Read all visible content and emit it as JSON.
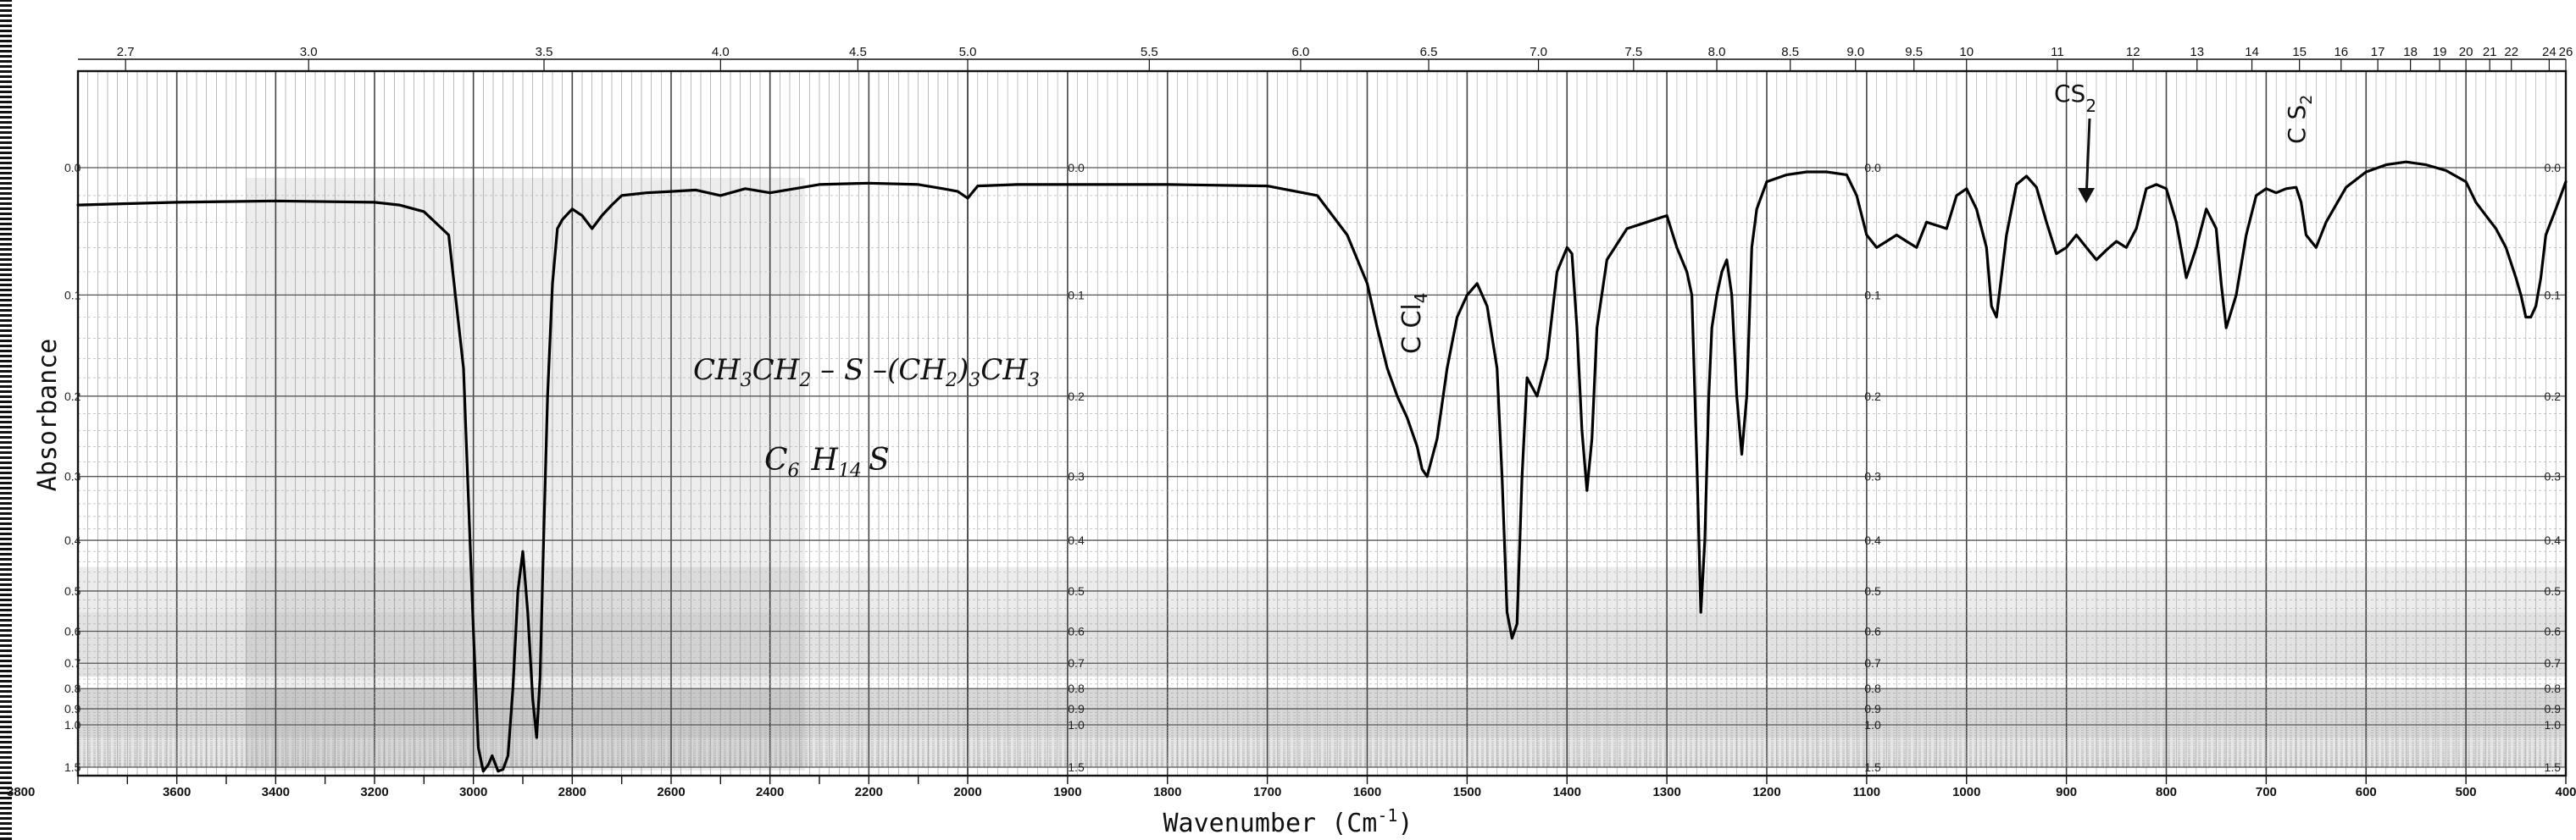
{
  "chart_data": {
    "type": "line",
    "title": "",
    "xlabel": "Wavenumber (Cm-1)",
    "xlabel_parts": {
      "main": "Wavenumber (Cm",
      "sup": "-1",
      "close": ")"
    },
    "ylabel": "Absorbance",
    "x_axis_reversed": true,
    "xlim": [
      3800,
      400
    ],
    "ylim": [
      0.0,
      1.5
    ],
    "y_scale": "transmittance-linear (absorbance grid)",
    "grid": true,
    "x_ticks_bottom": [
      "3800",
      "3600",
      "3400",
      "3200",
      "3000",
      "2800",
      "2600",
      "2400",
      "2200",
      "2000",
      "1900",
      "1800",
      "1700",
      "1600",
      "1500",
      "1400",
      "1300",
      "1200",
      "1100",
      "1000",
      "900",
      "800",
      "700",
      "600",
      "500",
      "400"
    ],
    "x_ticks_top": [
      {
        "label": "2.7",
        "um": 2.7
      },
      {
        "label": "3.0",
        "um": 3.0
      },
      {
        "label": "3.5",
        "um": 3.5
      },
      {
        "label": "4.0",
        "um": 4.0
      },
      {
        "label": "4.5",
        "um": 4.5
      },
      {
        "label": "5.0",
        "um": 5.0
      },
      {
        "label": "5.5",
        "um": 5.5
      },
      {
        "label": "6.0",
        "um": 6.0
      },
      {
        "label": "6.5",
        "um": 6.5
      },
      {
        "label": "7.0",
        "um": 7.0
      },
      {
        "label": "7.5",
        "um": 7.5
      },
      {
        "label": "8.0",
        "um": 8.0
      },
      {
        "label": "8.5",
        "um": 8.5
      },
      {
        "label": "9.0",
        "um": 9.0
      },
      {
        "label": "9.5",
        "um": 9.5
      },
      {
        "label": "10",
        "um": 10
      },
      {
        "label": "11",
        "um": 11
      },
      {
        "label": "12",
        "um": 12
      },
      {
        "label": "13",
        "um": 13
      },
      {
        "label": "14",
        "um": 14
      },
      {
        "label": "15",
        "um": 15
      },
      {
        "label": "16",
        "um": 16
      },
      {
        "label": "17",
        "um": 17
      },
      {
        "label": "18",
        "um": 18
      },
      {
        "label": "19",
        "um": 19
      },
      {
        "label": "20",
        "um": 20
      },
      {
        "label": "21",
        "um": 21
      },
      {
        "label": "22",
        "um": 22
      },
      {
        "label": "24",
        "um": 24
      },
      {
        "label": "26",
        "um": 26
      }
    ],
    "y_ticks_left": [
      "0.0",
      "0.1",
      "0.2",
      "0.3",
      "0.4",
      "0.5",
      "0.6",
      "0.7",
      "0.8",
      "0.9",
      "1.0",
      "1.5"
    ],
    "y_ticks_panels": [
      "0.0",
      "0.1",
      "0.2",
      "0.3",
      "0.4",
      "0.5",
      "0.6",
      "0.7",
      "0.8",
      "0.9",
      "1.0",
      "1.5"
    ],
    "y_ticks_right": [
      "0.0",
      "0.1",
      "0.2",
      "0.3",
      "0.4",
      "0.5",
      "0.6",
      "0.7",
      "0.8",
      "0.9",
      "1.0",
      "1.5"
    ],
    "series": [
      {
        "x": [
          3800,
          3600,
          3400,
          3200,
          3150,
          3100,
          3050,
          3020,
          3000,
          2990,
          2980,
          2970,
          2962,
          2955,
          2950,
          2940,
          2930,
          2920,
          2910,
          2900,
          2890,
          2880,
          2872,
          2865,
          2858,
          2850,
          2840,
          2830,
          2820,
          2800,
          2780,
          2760,
          2740,
          2720,
          2700,
          2650,
          2600,
          2550,
          2500,
          2450,
          2400,
          2300,
          2200,
          2100,
          2050,
          2020,
          2000,
          1990,
          1950,
          1900,
          1800,
          1700,
          1650,
          1620,
          1600,
          1590,
          1580,
          1570,
          1560,
          1550,
          1545,
          1540,
          1530,
          1520,
          1510,
          1500,
          1490,
          1480,
          1470,
          1465,
          1460,
          1455,
          1450,
          1445,
          1440,
          1430,
          1420,
          1410,
          1400,
          1395,
          1390,
          1385,
          1380,
          1375,
          1370,
          1360,
          1340,
          1320,
          1300,
          1290,
          1280,
          1275,
          1270,
          1266,
          1262,
          1258,
          1255,
          1250,
          1245,
          1240,
          1235,
          1230,
          1225,
          1220,
          1215,
          1210,
          1200,
          1180,
          1160,
          1140,
          1120,
          1110,
          1100,
          1090,
          1080,
          1070,
          1060,
          1050,
          1040,
          1020,
          1010,
          1000,
          990,
          980,
          975,
          970,
          960,
          950,
          940,
          930,
          920,
          910,
          900,
          890,
          880,
          870,
          860,
          850,
          840,
          830,
          820,
          810,
          800,
          790,
          780,
          770,
          760,
          750,
          745,
          740,
          730,
          720,
          710,
          700,
          690,
          680,
          670,
          665,
          660,
          650,
          640,
          620,
          600,
          580,
          560,
          540,
          520,
          500,
          490,
          480,
          470,
          460,
          450,
          445,
          440,
          435,
          430,
          425,
          420,
          410,
          400
        ],
        "y": [
          0.027,
          0.025,
          0.024,
          0.025,
          0.027,
          0.032,
          0.05,
          0.17,
          0.6,
          1.2,
          1.6,
          1.45,
          1.3,
          1.45,
          1.6,
          1.55,
          1.3,
          0.8,
          0.5,
          0.42,
          0.55,
          0.85,
          1.1,
          0.75,
          0.4,
          0.2,
          0.09,
          0.045,
          0.038,
          0.03,
          0.035,
          0.045,
          0.035,
          0.027,
          0.02,
          0.018,
          0.017,
          0.016,
          0.02,
          0.015,
          0.018,
          0.012,
          0.011,
          0.012,
          0.015,
          0.017,
          0.022,
          0.013,
          0.012,
          0.012,
          0.012,
          0.013,
          0.02,
          0.05,
          0.09,
          0.13,
          0.17,
          0.2,
          0.225,
          0.26,
          0.29,
          0.3,
          0.25,
          0.17,
          0.12,
          0.1,
          0.09,
          0.11,
          0.17,
          0.3,
          0.55,
          0.62,
          0.58,
          0.3,
          0.18,
          0.2,
          0.16,
          0.08,
          0.06,
          0.065,
          0.13,
          0.24,
          0.32,
          0.25,
          0.13,
          0.07,
          0.045,
          0.04,
          0.035,
          0.06,
          0.08,
          0.1,
          0.28,
          0.55,
          0.4,
          0.2,
          0.13,
          0.1,
          0.08,
          0.07,
          0.1,
          0.2,
          0.27,
          0.2,
          0.06,
          0.03,
          0.01,
          0.005,
          0.003,
          0.003,
          0.005,
          0.02,
          0.05,
          0.06,
          0.055,
          0.05,
          0.055,
          0.06,
          0.04,
          0.045,
          0.02,
          0.015,
          0.03,
          0.06,
          0.11,
          0.12,
          0.05,
          0.012,
          0.006,
          0.014,
          0.04,
          0.065,
          0.06,
          0.05,
          0.06,
          0.07,
          0.062,
          0.055,
          0.06,
          0.045,
          0.015,
          0.012,
          0.015,
          0.04,
          0.085,
          0.06,
          0.03,
          0.045,
          0.09,
          0.13,
          0.1,
          0.05,
          0.02,
          0.015,
          0.018,
          0.015,
          0.014,
          0.025,
          0.05,
          0.06,
          0.04,
          0.014,
          0.003,
          -0.002,
          -0.004,
          -0.002,
          0.002,
          0.01,
          0.025,
          0.035,
          0.045,
          0.06,
          0.085,
          0.1,
          0.12,
          0.12,
          0.11,
          0.085,
          0.05,
          0.03,
          0.01
        ]
      }
    ],
    "annotations": [
      {
        "text": "CH3CH2-S-(CH2)3CH3",
        "kind": "handwritten",
        "parts": [
          "CH",
          "3",
          "CH",
          "2",
          " – S –(CH",
          "2",
          ")",
          "3",
          "CH",
          "3"
        ]
      },
      {
        "text": "C6 H14 S",
        "kind": "handwritten",
        "parts": [
          "C",
          "6",
          "H",
          "14",
          "S"
        ]
      },
      {
        "text": "C Cl4",
        "kind": "handwritten-vertical",
        "parts": [
          "C Cl",
          "4"
        ]
      },
      {
        "text": "CS2",
        "kind": "handwritten",
        "parts": [
          "CS",
          "2"
        ]
      },
      {
        "text": "C S2",
        "kind": "handwritten-vertical",
        "parts": [
          "C S",
          "2"
        ]
      }
    ]
  }
}
